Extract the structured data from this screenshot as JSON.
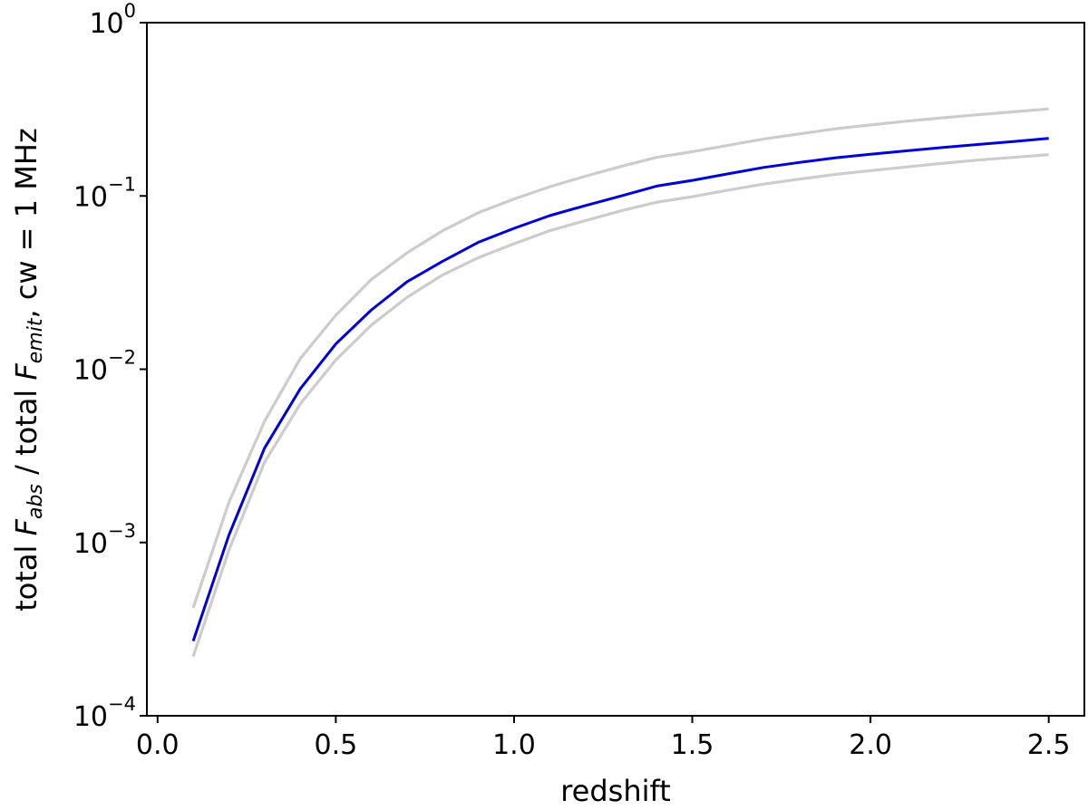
{
  "chart_data": {
    "type": "line",
    "xlabel": "redshift",
    "ylabel": {
      "prefix": "total ",
      "f1": "F",
      "sub1": "abs",
      "mid": " / total ",
      "f2": "F",
      "sub2": "emit",
      "suffix": ", cw = 1 MHz"
    },
    "xlim": [
      -0.03,
      2.6
    ],
    "ylim": [
      0.0001,
      1
    ],
    "yscale": "log",
    "grid": false,
    "x_ticks": [
      {
        "value": 0.0,
        "label": "0.0"
      },
      {
        "value": 0.5,
        "label": "0.5"
      },
      {
        "value": 1.0,
        "label": "1.0"
      },
      {
        "value": 1.5,
        "label": "1.5"
      },
      {
        "value": 2.0,
        "label": "2.0"
      },
      {
        "value": 2.5,
        "label": "2.5"
      }
    ],
    "y_ticks": [
      {
        "value": 1,
        "base": "10",
        "exp": "0"
      },
      {
        "value": 0.1,
        "base": "10",
        "exp": "−1"
      },
      {
        "value": 0.01,
        "base": "10",
        "exp": "−2"
      },
      {
        "value": 0.001,
        "base": "10",
        "exp": "−3"
      },
      {
        "value": 0.0001,
        "base": "10",
        "exp": "−4"
      }
    ],
    "x": [
      0.1,
      0.2,
      0.3,
      0.4,
      0.5,
      0.6,
      0.7,
      0.8,
      0.9,
      1.0,
      1.1,
      1.2,
      1.3,
      1.4,
      1.5,
      1.6,
      1.7,
      1.8,
      1.9,
      2.0,
      2.1,
      2.2,
      2.3,
      2.4,
      2.5
    ],
    "series": [
      {
        "role": "upper",
        "color": "#cccccc",
        "values": [
          0.00042,
          0.0017,
          0.005,
          0.0115,
          0.0205,
          0.033,
          0.047,
          0.063,
          0.08,
          0.096,
          0.113,
          0.13,
          0.148,
          0.167,
          0.18,
          0.196,
          0.213,
          0.228,
          0.244,
          0.257,
          0.27,
          0.282,
          0.294,
          0.306,
          0.318
        ]
      },
      {
        "role": "central",
        "color": "#0000dd",
        "values": [
          0.00027,
          0.0011,
          0.0035,
          0.0077,
          0.014,
          0.022,
          0.032,
          0.042,
          0.054,
          0.065,
          0.077,
          0.088,
          0.1,
          0.114,
          0.123,
          0.134,
          0.146,
          0.156,
          0.166,
          0.174,
          0.182,
          0.19,
          0.198,
          0.206,
          0.215
        ]
      },
      {
        "role": "lower",
        "color": "#cccccc",
        "values": [
          0.00022,
          0.0009,
          0.0029,
          0.0063,
          0.0113,
          0.018,
          0.026,
          0.035,
          0.044,
          0.053,
          0.063,
          0.072,
          0.082,
          0.092,
          0.099,
          0.108,
          0.117,
          0.125,
          0.133,
          0.14,
          0.147,
          0.154,
          0.161,
          0.167,
          0.173
        ]
      }
    ]
  }
}
